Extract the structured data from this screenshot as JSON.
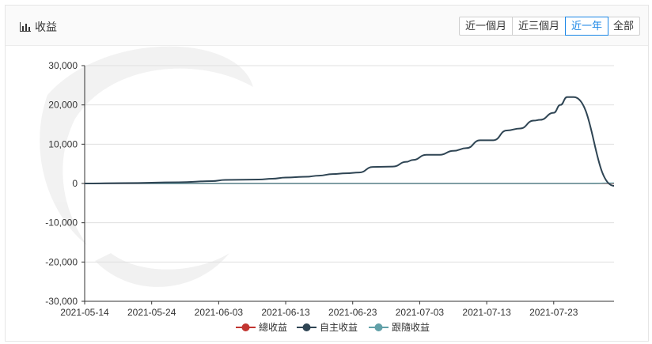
{
  "header": {
    "title": "收益",
    "title_icon": "bar-chart-icon",
    "ranges": [
      "近一個月",
      "近三個月",
      "近一年",
      "全部"
    ],
    "active_range": "近一年",
    "accent_color": "#1a86e6"
  },
  "chart_data": {
    "type": "line",
    "title": "",
    "xlabel": "",
    "ylabel": "",
    "ylim": [
      -30000,
      30000
    ],
    "yticks": [
      30000,
      20000,
      10000,
      0,
      -10000,
      -20000,
      -30000
    ],
    "ytick_labels": [
      "30,000",
      "20,000",
      "10,000",
      "0",
      "-10,000",
      "-20,000",
      "-30,000"
    ],
    "xlim": [
      "2021-05-14",
      "2021-08-01"
    ],
    "xtick_labels": [
      "2021-05-14",
      "2021-05-24",
      "2021-06-03",
      "2021-06-13",
      "2021-06-23",
      "2021-07-03",
      "2021-07-13",
      "2021-07-23"
    ],
    "grid": true,
    "legend": "bottom",
    "series": [
      {
        "name": "總收益",
        "color": "#c23531",
        "x": [
          "2021-05-14",
          "2021-08-01"
        ],
        "y": [
          0,
          0
        ]
      },
      {
        "name": "自主收益",
        "color": "#2f4554",
        "x": [
          "2021-05-14",
          "2021-05-20",
          "2021-05-28",
          "2021-06-02",
          "2021-06-04",
          "2021-06-09",
          "2021-06-11",
          "2021-06-13",
          "2021-06-16",
          "2021-06-18",
          "2021-06-20",
          "2021-06-22",
          "2021-06-24",
          "2021-06-26",
          "2021-06-29",
          "2021-07-01",
          "2021-07-02",
          "2021-07-04",
          "2021-07-06",
          "2021-07-08",
          "2021-07-10",
          "2021-07-12",
          "2021-07-14",
          "2021-07-16",
          "2021-07-18",
          "2021-07-20",
          "2021-07-21",
          "2021-07-23",
          "2021-07-24",
          "2021-07-25",
          "2021-07-26",
          "2021-08-01"
        ],
        "y": [
          0,
          100,
          300,
          600,
          900,
          1000,
          1200,
          1500,
          1700,
          2000,
          2400,
          2600,
          2800,
          4200,
          4300,
          5500,
          6000,
          7300,
          7300,
          8300,
          9000,
          11000,
          11000,
          13500,
          14000,
          16000,
          16200,
          18000,
          20000,
          22000,
          22000,
          -600
        ]
      },
      {
        "name": "跟隨收益",
        "color": "#61a0a8",
        "x": [
          "2021-05-14",
          "2021-07-28",
          "2021-08-01"
        ],
        "y": [
          0,
          0,
          100
        ]
      }
    ]
  }
}
